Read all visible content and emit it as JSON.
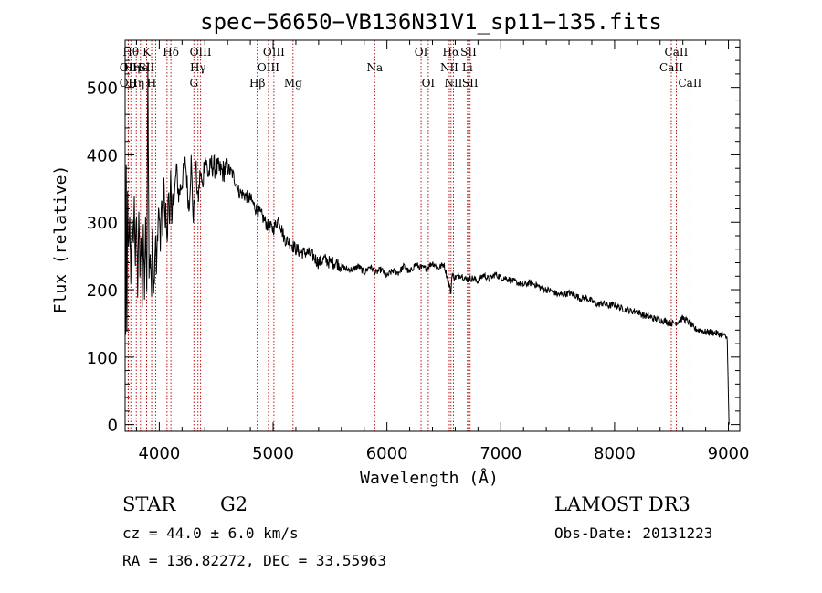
{
  "chart_data": {
    "type": "line",
    "title": "spec−56650−VB136N31V1_sp11−135.fits",
    "xlabel": "Wavelength (Å)",
    "ylabel": "Flux (relative)",
    "xlim": [
      3700,
      9100
    ],
    "ylim": [
      -10,
      570
    ],
    "xticks": [
      4000,
      5000,
      6000,
      7000,
      8000,
      9000
    ],
    "yticks": [
      0,
      100,
      200,
      300,
      400,
      500
    ],
    "series": [
      {
        "name": "spectrum",
        "x": [
          3700,
          3705,
          3710,
          3715,
          3722,
          3730,
          3740,
          3750,
          3760,
          3770,
          3780,
          3790,
          3800,
          3810,
          3820,
          3830,
          3840,
          3850,
          3860,
          3870,
          3880,
          3890,
          3900,
          3910,
          3920,
          3933,
          3940,
          3950,
          3968,
          3975,
          3990,
          4000,
          4010,
          4020,
          4030,
          4040,
          4050,
          4060,
          4070,
          4080,
          4090,
          4100,
          4110,
          4120,
          4130,
          4150,
          4170,
          4200,
          4230,
          4260,
          4280,
          4300,
          4320,
          4340,
          4360,
          4380,
          4400,
          4430,
          4460,
          4500,
          4550,
          4600,
          4650,
          4700,
          4750,
          4800,
          4850,
          4900,
          4950,
          5000,
          5050,
          5100,
          5150,
          5200,
          5250,
          5300,
          5350,
          5400,
          5450,
          5500,
          5550,
          5600,
          5650,
          5700,
          5750,
          5800,
          5850,
          5900,
          5950,
          6000,
          6050,
          6100,
          6150,
          6200,
          6250,
          6300,
          6350,
          6400,
          6450,
          6500,
          6550,
          6563,
          6570,
          6600,
          6650,
          6700,
          6750,
          6800,
          6850,
          6900,
          6950,
          7000,
          7050,
          7100,
          7150,
          7200,
          7250,
          7300,
          7350,
          7400,
          7450,
          7500,
          7550,
          7600,
          7650,
          7700,
          7750,
          7800,
          7850,
          7900,
          7950,
          8000,
          8050,
          8100,
          8150,
          8200,
          8250,
          8300,
          8350,
          8400,
          8450,
          8500,
          8550,
          8600,
          8650,
          8700,
          8750,
          8800,
          8850,
          8900,
          8950,
          8990,
          9000,
          9005
        ],
        "values": [
          380,
          140,
          380,
          120,
          340,
          250,
          300,
          220,
          310,
          260,
          330,
          240,
          310,
          200,
          320,
          220,
          280,
          180,
          290,
          200,
          300,
          200,
          540,
          230,
          260,
          200,
          290,
          190,
          280,
          230,
          300,
          320,
          260,
          340,
          280,
          360,
          300,
          320,
          260,
          350,
          300,
          370,
          280,
          350,
          330,
          380,
          340,
          360,
          390,
          320,
          390,
          300,
          385,
          330,
          375,
          350,
          400,
          370,
          385,
          380,
          375,
          380,
          370,
          345,
          340,
          335,
          320,
          310,
          295,
          290,
          305,
          275,
          270,
          260,
          255,
          255,
          250,
          240,
          245,
          240,
          240,
          235,
          230,
          230,
          235,
          225,
          235,
          225,
          230,
          220,
          228,
          225,
          235,
          225,
          238,
          232,
          232,
          240,
          232,
          238,
          205,
          195,
          222,
          218,
          222,
          215,
          217,
          213,
          222,
          215,
          223,
          218,
          217,
          213,
          210,
          207,
          210,
          208,
          203,
          200,
          198,
          193,
          193,
          195,
          192,
          187,
          188,
          183,
          178,
          180,
          176,
          178,
          173,
          170,
          168,
          168,
          162,
          160,
          157,
          155,
          153,
          150,
          152,
          158,
          152,
          142,
          140,
          137,
          137,
          135,
          133,
          128,
          40,
          0
        ]
      }
    ],
    "spectral_lines": [
      {
        "wl": 3750,
        "label": "Hθ",
        "row": 0
      },
      {
        "wl": 3798,
        "label": "Hη",
        "row": 2
      },
      {
        "wl": 3727,
        "label": "OII",
        "row": 1
      },
      {
        "wl": 3727,
        "label": "OII",
        "row": 2
      },
      {
        "wl": 3760,
        "label": "Hη",
        "row": 1
      },
      {
        "wl": 3835,
        "label": "He",
        "row": 1
      },
      {
        "wl": 3889,
        "label": "K",
        "row": 0
      },
      {
        "wl": 3889,
        "label": "SII",
        "row": 1
      },
      {
        "wl": 3933,
        "label": "H",
        "row": 2
      },
      {
        "wl": 3968,
        "label": "",
        "row": 0
      },
      {
        "wl": 4102,
        "label": "Hδ",
        "row": 0
      },
      {
        "wl": 4068,
        "label": "",
        "row": 1
      },
      {
        "wl": 4304,
        "label": "G",
        "row": 2
      },
      {
        "wl": 4340,
        "label": "Hγ",
        "row": 1
      },
      {
        "wl": 4363,
        "label": "OIII",
        "row": 0
      },
      {
        "wl": 4861,
        "label": "Hβ",
        "row": 2
      },
      {
        "wl": 4959,
        "label": "OIII",
        "row": 1
      },
      {
        "wl": 5007,
        "label": "OIII",
        "row": 0
      },
      {
        "wl": 5175,
        "label": "Mg",
        "row": 2
      },
      {
        "wl": 5893,
        "label": "Na",
        "row": 1
      },
      {
        "wl": 6300,
        "label": "OI",
        "row": 0
      },
      {
        "wl": 6363,
        "label": "OI",
        "row": 2
      },
      {
        "wl": 6548,
        "label": "NII",
        "row": 1
      },
      {
        "wl": 6563,
        "label": "Hα",
        "row": 0
      },
      {
        "wl": 6584,
        "label": "NII",
        "row": 2
      },
      {
        "wl": 6707,
        "label": "Li",
        "row": 1
      },
      {
        "wl": 6717,
        "label": "SII",
        "row": 0
      },
      {
        "wl": 6731,
        "label": "SII",
        "row": 2
      },
      {
        "wl": 8498,
        "label": "CaII",
        "row": 1
      },
      {
        "wl": 8542,
        "label": "CaII",
        "row": 0
      },
      {
        "wl": 8662,
        "label": "CaII",
        "row": 2
      }
    ]
  },
  "info": {
    "object_class": "STAR",
    "subclass": "G2",
    "survey": "LAMOST DR3",
    "redshift": "cz = 44.0 ± 6.0 km/s",
    "obs_date": "Obs-Date: 20131223",
    "coords": "RA = 136.82272, DEC =  33.55963"
  }
}
